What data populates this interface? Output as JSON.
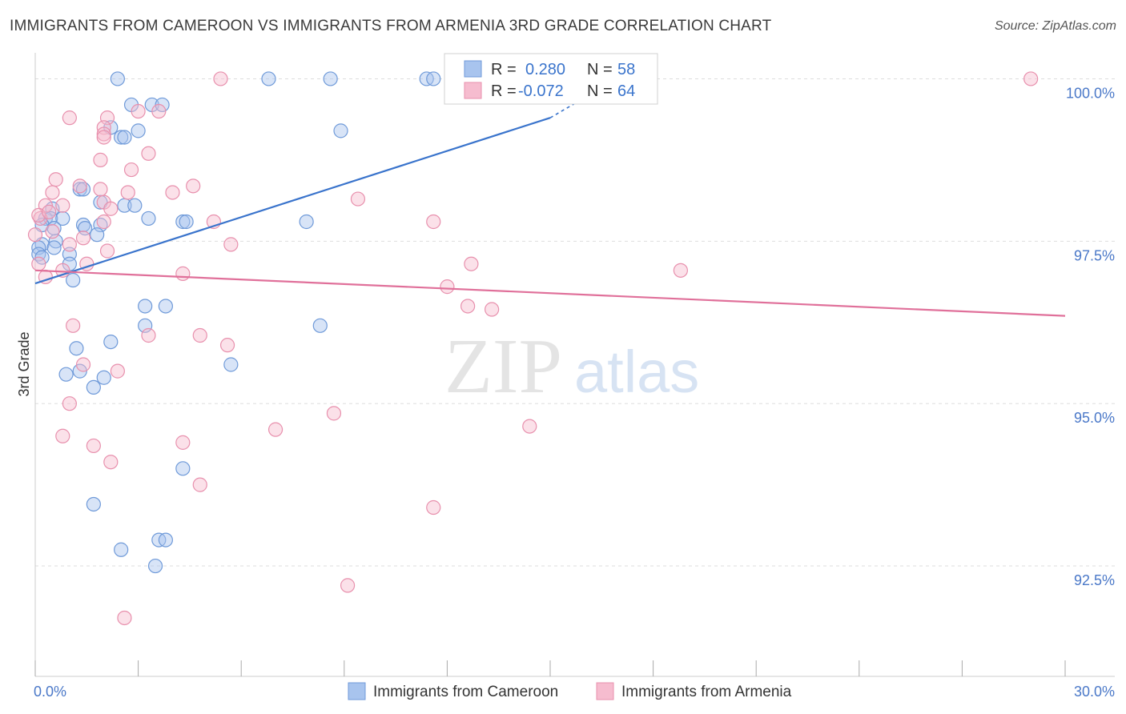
{
  "title": "IMMIGRANTS FROM CAMEROON VS IMMIGRANTS FROM ARMENIA 3RD GRADE CORRELATION CHART",
  "source": "Source: ZipAtlas.com",
  "watermark": {
    "zip": "ZIP",
    "atlas": "atlas"
  },
  "colors": {
    "blue_fill": "#a8c4ee",
    "blue_stroke": "#6f9ad9",
    "blue_line": "#3a74cc",
    "pink_fill": "#f6bccf",
    "pink_stroke": "#e890ad",
    "pink_line": "#e0709a",
    "tick_label": "#4a78c8",
    "grid": "#dddddd"
  },
  "legend": {
    "rows": [
      {
        "r_label": "R =",
        "r_value": "0.280",
        "n_label": "N =",
        "n_value": "58"
      },
      {
        "r_label": "R =",
        "r_value": "-0.072",
        "n_label": "N =",
        "n_value": "64"
      }
    ]
  },
  "chart_data": {
    "type": "scatter",
    "title": "IMMIGRANTS FROM CAMEROON VS IMMIGRANTS FROM ARMENIA 3RD GRADE CORRELATION CHART",
    "xlabel": "",
    "ylabel": "3rd Grade",
    "xlim": [
      0,
      30
    ],
    "ylim": [
      90.8,
      100.4
    ],
    "x_tick_labels": [
      "0.0%",
      "30.0%"
    ],
    "y_ticks": [
      100.0,
      97.5,
      95.0,
      92.5
    ],
    "y_tick_labels": [
      "100.0%",
      "97.5%",
      "95.0%",
      "92.5%"
    ],
    "grid": true,
    "legend_position": "top-center",
    "series": [
      {
        "name": "Immigrants from Cameroon",
        "color": "#a8c4ee",
        "trend": {
          "x0": 0.0,
          "y0": 96.85,
          "x1": 15.0,
          "y1": 99.4
        },
        "points": [
          [
            2.4,
            100.0
          ],
          [
            6.8,
            100.0
          ],
          [
            8.6,
            100.0
          ],
          [
            11.4,
            100.0
          ],
          [
            11.6,
            100.0
          ],
          [
            2.8,
            99.6
          ],
          [
            3.4,
            99.6
          ],
          [
            3.7,
            99.6
          ],
          [
            2.2,
            99.25
          ],
          [
            3.0,
            99.2
          ],
          [
            2.5,
            99.1
          ],
          [
            2.6,
            99.1
          ],
          [
            8.9,
            99.2
          ],
          [
            1.3,
            98.3
          ],
          [
            1.4,
            98.3
          ],
          [
            1.9,
            98.1
          ],
          [
            2.6,
            98.05
          ],
          [
            2.9,
            98.05
          ],
          [
            0.5,
            98.0
          ],
          [
            0.3,
            97.85
          ],
          [
            0.45,
            97.85
          ],
          [
            0.8,
            97.85
          ],
          [
            1.4,
            97.75
          ],
          [
            1.9,
            97.75
          ],
          [
            3.3,
            97.85
          ],
          [
            4.3,
            97.8
          ],
          [
            4.4,
            97.8
          ],
          [
            7.9,
            97.8
          ],
          [
            0.2,
            97.75
          ],
          [
            0.55,
            97.7
          ],
          [
            1.45,
            97.7
          ],
          [
            1.8,
            97.6
          ],
          [
            0.6,
            97.5
          ],
          [
            0.2,
            97.45
          ],
          [
            0.1,
            97.4
          ],
          [
            0.55,
            97.4
          ],
          [
            0.1,
            97.3
          ],
          [
            1.0,
            97.3
          ],
          [
            0.2,
            97.25
          ],
          [
            1.0,
            97.15
          ],
          [
            1.1,
            96.9
          ],
          [
            3.2,
            96.5
          ],
          [
            3.8,
            96.5
          ],
          [
            3.2,
            96.2
          ],
          [
            8.3,
            96.2
          ],
          [
            2.2,
            95.95
          ],
          [
            1.2,
            95.85
          ],
          [
            5.7,
            95.6
          ],
          [
            0.9,
            95.45
          ],
          [
            1.3,
            95.5
          ],
          [
            2.0,
            95.4
          ],
          [
            1.7,
            95.25
          ],
          [
            4.3,
            94.0
          ],
          [
            1.7,
            93.45
          ],
          [
            2.5,
            92.75
          ],
          [
            3.6,
            92.9
          ],
          [
            3.8,
            92.9
          ],
          [
            3.5,
            92.5
          ]
        ]
      },
      {
        "name": "Immigrants from Armenia",
        "color": "#f6bccf",
        "trend": {
          "x0": 0.0,
          "y0": 97.05,
          "x1": 30.0,
          "y1": 96.35
        },
        "points": [
          [
            5.4,
            100.0
          ],
          [
            29.0,
            100.0
          ],
          [
            3.0,
            99.5
          ],
          [
            3.6,
            99.5
          ],
          [
            1.0,
            99.4
          ],
          [
            2.1,
            99.4
          ],
          [
            2.0,
            99.25
          ],
          [
            2.0,
            99.15
          ],
          [
            2.0,
            99.1
          ],
          [
            3.3,
            98.85
          ],
          [
            1.9,
            98.75
          ],
          [
            2.8,
            98.6
          ],
          [
            0.6,
            98.45
          ],
          [
            4.6,
            98.35
          ],
          [
            1.3,
            98.35
          ],
          [
            0.5,
            98.25
          ],
          [
            1.9,
            98.3
          ],
          [
            2.7,
            98.25
          ],
          [
            4.0,
            98.25
          ],
          [
            9.4,
            98.15
          ],
          [
            2.0,
            98.1
          ],
          [
            0.3,
            98.05
          ],
          [
            0.8,
            98.05
          ],
          [
            2.2,
            98.0
          ],
          [
            0.15,
            97.85
          ],
          [
            2.0,
            97.8
          ],
          [
            5.2,
            97.8
          ],
          [
            11.6,
            97.8
          ],
          [
            0.0,
            97.6
          ],
          [
            0.5,
            97.65
          ],
          [
            1.4,
            97.55
          ],
          [
            1.0,
            97.45
          ],
          [
            5.7,
            97.45
          ],
          [
            2.1,
            97.35
          ],
          [
            0.1,
            97.15
          ],
          [
            1.5,
            97.15
          ],
          [
            12.7,
            97.15
          ],
          [
            18.8,
            97.05
          ],
          [
            0.8,
            97.05
          ],
          [
            4.3,
            97.0
          ],
          [
            0.3,
            96.95
          ],
          [
            12.0,
            96.8
          ],
          [
            12.6,
            96.5
          ],
          [
            13.3,
            96.45
          ],
          [
            1.1,
            96.2
          ],
          [
            3.3,
            96.05
          ],
          [
            4.8,
            96.05
          ],
          [
            5.6,
            95.9
          ],
          [
            1.4,
            95.6
          ],
          [
            2.4,
            95.5
          ],
          [
            1.0,
            95.0
          ],
          [
            8.7,
            94.85
          ],
          [
            7.0,
            94.6
          ],
          [
            14.4,
            94.65
          ],
          [
            0.8,
            94.5
          ],
          [
            1.7,
            94.35
          ],
          [
            4.3,
            94.4
          ],
          [
            2.2,
            94.1
          ],
          [
            4.8,
            93.75
          ],
          [
            11.6,
            93.4
          ],
          [
            9.1,
            92.2
          ],
          [
            2.6,
            91.7
          ],
          [
            0.1,
            97.9
          ],
          [
            0.4,
            97.95
          ]
        ]
      }
    ]
  }
}
